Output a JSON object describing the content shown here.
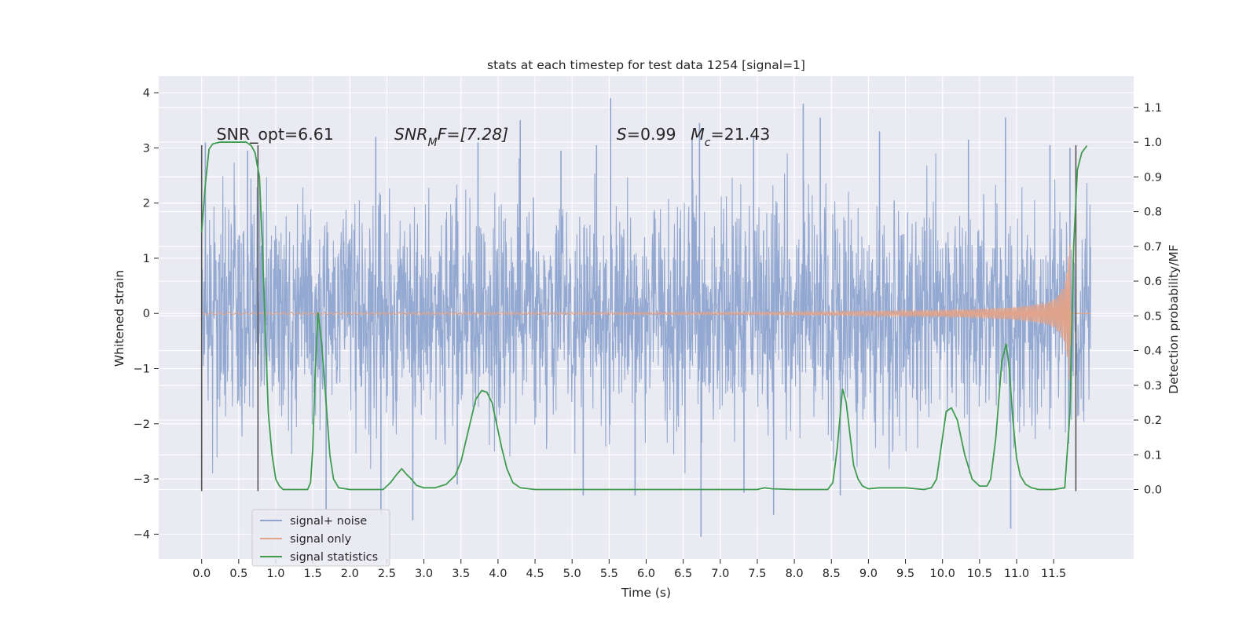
{
  "chart_data": {
    "type": "line",
    "title": "stats at each timestep for test data 1254 [signal=1]",
    "xlabel": "Time (s)",
    "ylabel_left": "Whitened strain",
    "ylabel_right": "Detection probability/MF",
    "xlim": [
      -0.58,
      12.58
    ],
    "ylim_left": [
      -4.45,
      4.3
    ],
    "ylim_right": [
      -0.2,
      1.19
    ],
    "grid": true,
    "background": "#eaeaf2",
    "x_ticks": [
      0.0,
      0.5,
      1.0,
      1.5,
      2.0,
      2.5,
      3.0,
      3.5,
      4.0,
      4.5,
      5.0,
      5.5,
      6.0,
      6.5,
      7.0,
      7.5,
      8.0,
      8.5,
      9.0,
      9.5,
      10.0,
      10.5,
      11.0,
      11.5
    ],
    "x_tick_labels": [
      "0.0",
      "0.5",
      "1.0",
      "1.5",
      "2.0",
      "2.5",
      "3.0",
      "3.5",
      "4.0",
      "4.5",
      "5.0",
      "5.5",
      "6.0",
      "6.5",
      "7.0",
      "7.5",
      "8.0",
      "8.5",
      "9.0",
      "9.5",
      "10.0",
      "10.5",
      "11.0",
      "11.5"
    ],
    "y_ticks_left": [
      4,
      3,
      2,
      1,
      0,
      -1,
      -2,
      -3,
      -4
    ],
    "y_tick_labels_left": [
      "4",
      "3",
      "2",
      "1",
      "0",
      "−1",
      "−2",
      "−3",
      "−4"
    ],
    "y_ticks_right": [
      1.1,
      1.0,
      0.9,
      0.8,
      0.7,
      0.6,
      0.5,
      0.4,
      0.3,
      0.2,
      0.1,
      0.0
    ],
    "y_tick_labels_right": [
      "1.1",
      "1.0",
      "0.9",
      "0.8",
      "0.7",
      "0.6",
      "0.5",
      "0.4",
      "0.3",
      "0.2",
      "0.1",
      "0.0"
    ],
    "annotations": [
      {
        "text": "SNR_opt=6.61",
        "x": 0.2,
        "y": 3.15
      },
      {
        "text": "SNR",
        "sub": "M",
        "tail": "F=[7.28]",
        "italic": true,
        "x": 2.6,
        "y": 3.15
      },
      {
        "text": "S",
        "tail": "=0.99",
        "x": 5.6,
        "y": 3.15
      },
      {
        "text": "M",
        "sub": "c",
        "tail": "=21.43",
        "x": 6.6,
        "y": 3.15
      }
    ],
    "vertical_markers": {
      "x": [
        0.0,
        0.76,
        11.8
      ],
      "y_range": [
        -3.22,
        3.05
      ],
      "color": "#555555"
    },
    "legend": {
      "placement": "lower-left",
      "entries": [
        {
          "label": "signal+ noise",
          "color": "#8fa5cf"
        },
        {
          "label": "signal only",
          "color": "#e0a48c"
        },
        {
          "label": "signal statistics",
          "color": "#3f9c4f"
        }
      ]
    },
    "series": [
      {
        "name": "signal+ noise",
        "axis": "left",
        "color": "#8fa5cf",
        "x_range": [
          0.0,
          12.0
        ],
        "typical_amplitude": 1.0,
        "extremes": [
          {
            "x": 0.05,
            "y": 3.1
          },
          {
            "x": 0.62,
            "y": 2.95
          },
          {
            "x": 1.68,
            "y": -3.55
          },
          {
            "x": 2.35,
            "y": 3.2
          },
          {
            "x": 2.42,
            "y": -3.65
          },
          {
            "x": 2.85,
            "y": -3.75
          },
          {
            "x": 3.45,
            "y": -3.1
          },
          {
            "x": 3.73,
            "y": 3.1
          },
          {
            "x": 4.3,
            "y": 3.5
          },
          {
            "x": 4.85,
            "y": 2.95
          },
          {
            "x": 5.15,
            "y": -3.3
          },
          {
            "x": 5.33,
            "y": 3.05
          },
          {
            "x": 5.52,
            "y": 3.9
          },
          {
            "x": 5.85,
            "y": -3.3
          },
          {
            "x": 6.62,
            "y": 3.2
          },
          {
            "x": 6.72,
            "y": 3.45
          },
          {
            "x": 6.74,
            "y": -4.05
          },
          {
            "x": 7.32,
            "y": -3.25
          },
          {
            "x": 7.45,
            "y": 3.2
          },
          {
            "x": 7.72,
            "y": -3.65
          },
          {
            "x": 8.12,
            "y": 3.8
          },
          {
            "x": 8.35,
            "y": 3.55
          },
          {
            "x": 8.62,
            "y": -3.3
          },
          {
            "x": 9.15,
            "y": 3.3
          },
          {
            "x": 10.35,
            "y": 3.15
          },
          {
            "x": 10.85,
            "y": 3.55
          },
          {
            "x": 10.92,
            "y": -3.9
          },
          {
            "x": 11.45,
            "y": 3.05
          },
          {
            "x": 11.72,
            "y": 3.0
          }
        ]
      },
      {
        "name": "signal only",
        "axis": "left",
        "color": "#e0a48c",
        "envelope": {
          "x": [
            0.0,
            6.0,
            7.5,
            8.5,
            9.5,
            10.0,
            10.5,
            11.0,
            11.2,
            11.4,
            11.5,
            11.55,
            11.6,
            11.63,
            11.66,
            11.68,
            11.69,
            11.7,
            11.72,
            11.74
          ],
          "amplitude": [
            0.02,
            0.02,
            0.025,
            0.035,
            0.05,
            0.06,
            0.08,
            0.12,
            0.15,
            0.2,
            0.26,
            0.32,
            0.42,
            0.5,
            0.62,
            0.8,
            0.95,
            1.15,
            1.3,
            0.05
          ]
        }
      },
      {
        "name": "signal statistics",
        "axis": "right",
        "color": "#3f9c4f",
        "x": [
          0.0,
          0.05,
          0.1,
          0.15,
          0.25,
          0.4,
          0.5,
          0.6,
          0.67,
          0.72,
          0.78,
          0.82,
          0.86,
          0.9,
          0.95,
          1.0,
          1.05,
          1.1,
          1.3,
          1.43,
          1.47,
          1.5,
          1.53,
          1.57,
          1.62,
          1.68,
          1.73,
          1.78,
          1.85,
          2.0,
          2.2,
          2.45,
          2.55,
          2.62,
          2.7,
          2.76,
          2.83,
          2.9,
          3.0,
          3.15,
          3.3,
          3.42,
          3.5,
          3.6,
          3.7,
          3.78,
          3.85,
          3.92,
          3.98,
          4.05,
          4.12,
          4.2,
          4.3,
          4.5,
          5.0,
          6.0,
          7.0,
          7.5,
          7.6,
          7.7,
          8.0,
          8.45,
          8.52,
          8.58,
          8.65,
          8.7,
          8.75,
          8.8,
          8.86,
          8.92,
          9.0,
          9.15,
          9.5,
          9.75,
          9.85,
          9.92,
          9.98,
          10.05,
          10.12,
          10.2,
          10.3,
          10.4,
          10.5,
          10.6,
          10.65,
          10.72,
          10.8,
          10.86,
          10.9,
          10.95,
          11.0,
          11.05,
          11.12,
          11.2,
          11.3,
          11.5,
          11.65,
          11.72,
          11.77,
          11.82,
          11.88,
          11.95
        ],
        "y": [
          0.74,
          0.88,
          0.98,
          0.995,
          1.0,
          1.0,
          1.0,
          1.0,
          0.99,
          0.97,
          0.9,
          0.7,
          0.45,
          0.22,
          0.1,
          0.03,
          0.01,
          0.0,
          0.0,
          0.0,
          0.02,
          0.12,
          0.32,
          0.51,
          0.42,
          0.25,
          0.1,
          0.03,
          0.005,
          0.0,
          0.0,
          0.0,
          0.02,
          0.04,
          0.06,
          0.045,
          0.03,
          0.012,
          0.005,
          0.005,
          0.015,
          0.04,
          0.08,
          0.17,
          0.26,
          0.285,
          0.28,
          0.25,
          0.19,
          0.12,
          0.06,
          0.02,
          0.005,
          0.0,
          0.0,
          0.0,
          0.0,
          0.0,
          0.005,
          0.002,
          0.0,
          0.0,
          0.02,
          0.12,
          0.29,
          0.25,
          0.16,
          0.07,
          0.03,
          0.01,
          0.002,
          0.005,
          0.005,
          0.0,
          0.005,
          0.03,
          0.12,
          0.225,
          0.235,
          0.2,
          0.1,
          0.03,
          0.01,
          0.01,
          0.03,
          0.15,
          0.37,
          0.42,
          0.35,
          0.2,
          0.09,
          0.04,
          0.015,
          0.005,
          0.0,
          0.0,
          0.005,
          0.22,
          0.7,
          0.92,
          0.97,
          0.99
        ]
      }
    ]
  }
}
